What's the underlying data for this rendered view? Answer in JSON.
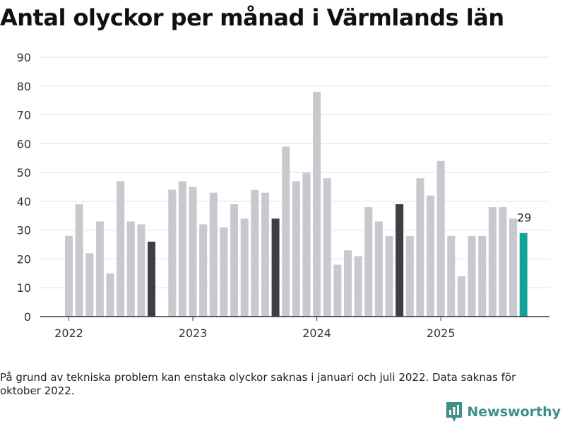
{
  "chart_data": {
    "type": "bar",
    "title": "Antal olyckor per månad i Värmlands län",
    "xlabel": "",
    "ylabel": "",
    "ylim": [
      0,
      90
    ],
    "yticks": [
      0,
      10,
      20,
      30,
      40,
      50,
      60,
      70,
      80,
      90
    ],
    "xtick_labels": [
      "2022",
      "2023",
      "2024",
      "2025"
    ],
    "categories": [
      "2022-01",
      "2022-02",
      "2022-03",
      "2022-04",
      "2022-05",
      "2022-06",
      "2022-07",
      "2022-08",
      "2022-09",
      "2022-10",
      "2022-11",
      "2022-12",
      "2023-01",
      "2023-02",
      "2023-03",
      "2023-04",
      "2023-05",
      "2023-06",
      "2023-07",
      "2023-08",
      "2023-09",
      "2023-10",
      "2023-11",
      "2023-12",
      "2024-01",
      "2024-02",
      "2024-03",
      "2024-04",
      "2024-05",
      "2024-06",
      "2024-07",
      "2024-08",
      "2024-09",
      "2024-10",
      "2024-11",
      "2024-12",
      "2025-01",
      "2025-02",
      "2025-03",
      "2025-04",
      "2025-05",
      "2025-06",
      "2025-07",
      "2025-08",
      "2025-09"
    ],
    "values": [
      28,
      39,
      22,
      33,
      15,
      47,
      33,
      32,
      26,
      null,
      44,
      47,
      45,
      32,
      43,
      31,
      39,
      34,
      44,
      43,
      34,
      59,
      47,
      50,
      78,
      48,
      18,
      23,
      21,
      38,
      33,
      28,
      39,
      28,
      48,
      42,
      54,
      28,
      14,
      28,
      28,
      38,
      38,
      34,
      29
    ],
    "highlight_months": [
      "2022-09",
      "2023-09",
      "2024-09"
    ],
    "latest_month": "2025-09",
    "latest_label": "29",
    "colors": {
      "default": "#c8c8cf",
      "highlight": "#3e3e47",
      "latest": "#12a39a",
      "grid": "#e1e1e1",
      "axis": "#333333"
    }
  },
  "footnote": "På grund av tekniska problem kan enstaka olyckor saknas i januari och juli 2022. Data saknas för oktober 2022.",
  "brand": {
    "name": "Newsworthy",
    "icon": "newsworthy-logo-icon",
    "color": "#3e8f8a"
  }
}
